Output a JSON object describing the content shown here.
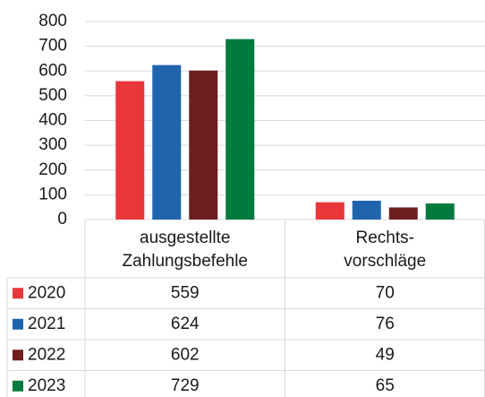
{
  "chart_data": {
    "type": "bar",
    "categories": [
      [
        "ausgestellte",
        "Zahlungsbefehle"
      ],
      [
        "Rechts-",
        "vorschläge"
      ]
    ],
    "series": [
      {
        "name": "2020",
        "color": "#e8363b",
        "values": [
          559,
          70
        ]
      },
      {
        "name": "2021",
        "color": "#1f64ad",
        "values": [
          624,
          76
        ]
      },
      {
        "name": "2022",
        "color": "#6d1f1f",
        "values": [
          602,
          49
        ]
      },
      {
        "name": "2023",
        "color": "#007a3d",
        "values": [
          729,
          65
        ]
      }
    ],
    "ylim": [
      0,
      800
    ],
    "yticks": [
      0,
      100,
      200,
      300,
      400,
      500,
      600,
      700,
      800
    ],
    "grid": true
  }
}
